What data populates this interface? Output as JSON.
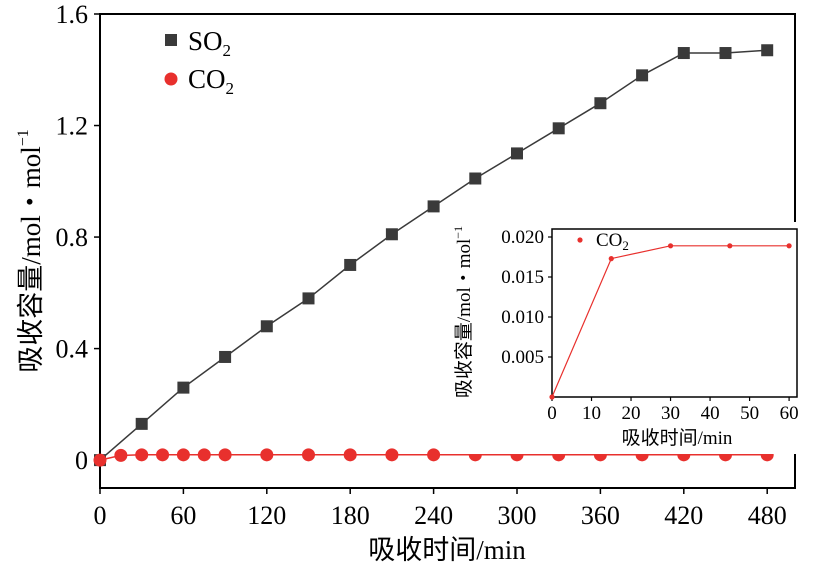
{
  "chart_data": [
    {
      "type": "line",
      "title": "",
      "xlabel": "吸收时间/min",
      "ylabel": "吸收容量/mol・mol",
      "ylabel_sup": "−1",
      "xlim": [
        0,
        500
      ],
      "ylim": [
        -0.1,
        1.6
      ],
      "xticks": [
        {
          "value": 0,
          "label": "0"
        },
        {
          "value": 60,
          "label": "60"
        },
        {
          "value": 120,
          "label": "120"
        },
        {
          "value": 180,
          "label": "180"
        },
        {
          "value": 240,
          "label": "240"
        },
        {
          "value": 300,
          "label": "300"
        },
        {
          "value": 360,
          "label": "360"
        },
        {
          "value": 420,
          "label": "420"
        },
        {
          "value": 480,
          "label": "480"
        }
      ],
      "yticks": [
        {
          "value": 0,
          "label": "0"
        },
        {
          "value": 0.4,
          "label": "0.4"
        },
        {
          "value": 0.8,
          "label": "0.8"
        },
        {
          "value": 1.2,
          "label": "1.2"
        },
        {
          "value": 1.6,
          "label": "1.6"
        }
      ],
      "grid": false,
      "legend_position": "top-left",
      "series": [
        {
          "name": "SO",
          "name_sub": "2",
          "marker": "square",
          "color": "#3a3a3a",
          "x": [
            0,
            30,
            60,
            90,
            120,
            150,
            180,
            210,
            240,
            270,
            300,
            330,
            360,
            390,
            420,
            450,
            480
          ],
          "y": [
            0,
            0.13,
            0.26,
            0.37,
            0.48,
            0.58,
            0.7,
            0.81,
            0.91,
            1.01,
            1.1,
            1.19,
            1.28,
            1.38,
            1.46,
            1.46,
            1.47
          ]
        },
        {
          "name": "CO",
          "name_sub": "2",
          "marker": "circle",
          "color": "#e8302d",
          "x": [
            0,
            15,
            30,
            45,
            60,
            75,
            90,
            120,
            150,
            180,
            210,
            240,
            270,
            300,
            330,
            360,
            390,
            420,
            450,
            480
          ],
          "y": [
            0,
            0.017,
            0.019,
            0.019,
            0.019,
            0.019,
            0.019,
            0.019,
            0.019,
            0.019,
            0.019,
            0.019,
            0.019,
            0.019,
            0.019,
            0.019,
            0.019,
            0.019,
            0.019,
            0.019
          ]
        }
      ]
    },
    {
      "type": "line",
      "title": "",
      "xlabel": "吸收时间/min",
      "ylabel": "吸收容量/mol・mol",
      "ylabel_sup": "−1",
      "xlim": [
        0,
        62
      ],
      "ylim": [
        0,
        0.021
      ],
      "xticks": [
        {
          "value": 0,
          "label": "0"
        },
        {
          "value": 10,
          "label": "10"
        },
        {
          "value": 20,
          "label": "20"
        },
        {
          "value": 30,
          "label": "30"
        },
        {
          "value": 40,
          "label": "40"
        },
        {
          "value": 50,
          "label": "50"
        },
        {
          "value": 60,
          "label": "60"
        }
      ],
      "yticks": [
        {
          "value": 0.005,
          "label": "0.005"
        },
        {
          "value": 0.01,
          "label": "0.010"
        },
        {
          "value": 0.015,
          "label": "0.015"
        },
        {
          "value": 0.02,
          "label": "0.020"
        }
      ],
      "grid": false,
      "legend_position": "top-left",
      "series": [
        {
          "name": "CO",
          "name_sub": "2",
          "marker": "circle",
          "color": "#e8302d",
          "x": [
            0,
            15,
            30,
            45,
            60
          ],
          "y": [
            0,
            0.0173,
            0.0189,
            0.0189,
            0.0189
          ]
        }
      ]
    }
  ]
}
